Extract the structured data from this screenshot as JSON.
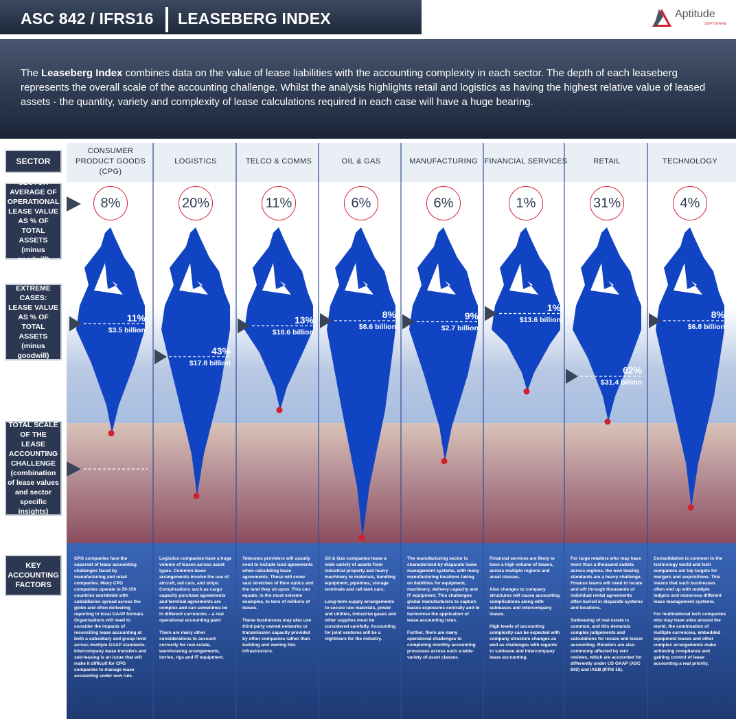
{
  "header": {
    "title_left": "ASC 842 / IFRS16",
    "title_right": "LEASEBERG INDEX",
    "logo_name": "Aptitude",
    "logo_tagline": "SOFTWARE"
  },
  "intro": {
    "lead": "The ",
    "bold": "Leaseberg Index",
    "text": " combines data on the value of lease liabilities with the accounting complexity in each sector.  The depth of each leaseberg represents the overall scale of the accounting challenge.  Whilst the analysis highlights retail and logistics as having the highest relative value of leased assets - the quantity, variety and complexity of lease calculations required in each case will have a huge bearing."
  },
  "row_labels": {
    "sector": "SECTOR",
    "average": "SECTOR AVERAGE OF OPERATIONAL LEASE VALUE AS % OF TOTAL ASSETS (minus goodwill)",
    "extreme": "EXTREME CASES: LEASE VALUE AS % OF TOTAL ASSETS (minus goodwill)",
    "total": "TOTAL SCALE OF THE LEASE ACCOUNTING CHALLENGE (combination of lease values and sector specific insights)",
    "factors": "KEY ACCOUNTING FACTORS"
  },
  "sectors": [
    {
      "name": "CONSUMER PRODUCT GOODS (CPG)",
      "avg": "8%",
      "extreme_pct": "11%",
      "extreme_value": "$3.5 billion",
      "extreme_level": 11,
      "depth_scale": 0.55,
      "factors": [
        "CPG companies face the superset of lease accounting challenges faced by manufacturing and retail companies. Many CPG companies operate in 50-150 countries worldwide with subsidiaries spread across the globe and often delivering reporting in local GAAP formats. Organisations will need to consider the impacts of reconciling lease accounting at both a subsidiary and group level across multiple GAAP standards. Intercompany lease transfers and sub-leasing is an issue that will make it difficult for CPG companies to manage lease accounting under new rule."
      ]
    },
    {
      "name": "LOGISTICS",
      "avg": "20%",
      "extreme_pct": "43%",
      "extreme_value": "$17.8 billion",
      "extreme_level": 43,
      "depth_scale": 0.82,
      "factors": [
        "Logistics companies have a huge volume of leases across asset types. Common lease arrangements involve the use of aircraft, rail cars, and ships. Complications such as cargo capacity purchase agreements and terminal agreements are complex and can sometimes be in different currencies – a real operational accounting pain!",
        "There are many other considerations to account correctly for real estate, warehousing arrangements, lorries, rigs and IT equipment."
      ]
    },
    {
      "name": "TELCO & COMMS",
      "avg": "11%",
      "extreme_pct": "13%",
      "extreme_value": "$18.6 billion",
      "extreme_level": 13,
      "depth_scale": 0.45,
      "factors": [
        "Telecoms providers will usually need to include land agreements when calculating lease agreements.  These will cover vast stretches of fibre optics and the land they sit upon.  This can equate, in the most extreme examples, to tens of millions of leases.",
        "These businesses may also use third-party owned networks or transmission capacity provided by other companies rather than building and owning this infrastructure."
      ]
    },
    {
      "name": "OIL & GAS",
      "avg": "6%",
      "extreme_pct": "8%",
      "extreme_value": "$8.6 billion",
      "extreme_level": 8,
      "depth_scale": 1.0,
      "factors": [
        "Oil & Gas companies lease a wide variety of assets from industrial property and heavy machinery to materials, handling equipment, pipelines, storage terminals and rail tank cars.",
        "Long-term supply arrangements to secure raw materials, power and utilities, industrial gases and other supplies must be considered carefully. Accounting for joint ventures will be a nightmare for the industry."
      ]
    },
    {
      "name": "MANUFACTURING",
      "avg": "6%",
      "extreme_pct": "9%",
      "extreme_value": "$2.7 billion",
      "extreme_level": 9,
      "depth_scale": 0.67,
      "factors": [
        "The manufacturing sector is characterized by disparate lease management systems, with many manufacturing locations taking on liabilities for equipment, machinery, delivery capacity and IT equipment. This challenges global manufacturers to capture leases exposures centrally and to harmonise the application of lease accounting rules.",
        "Further, there are many operational challenges to completing monthly accounting processes across such a wide-variety of asset classes."
      ]
    },
    {
      "name": "FINANCIAL SERVICES",
      "avg": "1%",
      "extreme_pct": "1%",
      "extreme_value": "$13.6 billion",
      "extreme_level": 1,
      "depth_scale": 0.37,
      "factors": [
        "Financial services are likely to have a high volume of leases, across multiple regions and asset classes.",
        "Also changes to company structures will cause accounting complications along with subleases and intercompany leases.",
        "High levels of accounting complexity can be expected with company structure changes as well as challenges with regards to sublease and intercompany lease accounting."
      ]
    },
    {
      "name": "RETAIL",
      "avg": "31%",
      "extreme_pct": "62%",
      "extreme_value": "$31.4 billion",
      "extreme_level": 62,
      "depth_scale": 0.5,
      "factors": [
        "For large retailers who may have more than a thousand outlets across regions, the new leasing standards are a heavy challenge. Finance teams will need to locate and sift through thousands of individual rental agreements often buried in disparate systems and locations.",
        "Subleasing of real estate is common, and this demands complex judgements and calculations for lessee and lessor accounting. Retailers are also commonly affected by rent reviews, which are accounted for differently under US GAAP (ASC 842) and IASB (IFRS 16)."
      ]
    },
    {
      "name": "TECHNOLOGY",
      "avg": "4%",
      "extreme_pct": "8%",
      "extreme_value": "$6.8 billion",
      "extreme_level": 8,
      "depth_scale": 0.87,
      "factors": [
        "Consolidation is common in the technology world and tech companies are top targets for mergers and acquisitions. This means that such businesses often end up with multiple ledgers and numerous different lease management systems.",
        "For multinational tech companies who may have sites around the world, the combination of multiple currencies, embedded equipment leases and other complex arrangements make achieving compliance and gaining control of lease accounting a real priority."
      ]
    }
  ],
  "colors": {
    "dark_navy": "#1d2739",
    "iceberg_blue": "#1144c2",
    "red_accent": "#d0202e"
  }
}
